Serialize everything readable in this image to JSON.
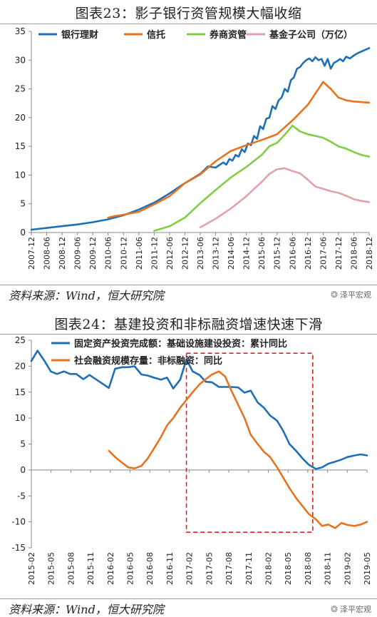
{
  "charts": [
    {
      "title": "图表23：影子银行资管规模大幅收缩",
      "source": "资料来源：Wind，恒大研究院",
      "watermark": "泽平宏观"
    },
    {
      "title": "图表24：基建投资和非标融资增速快速下滑",
      "source": "资料来源：Wind，恒大研究院",
      "watermark": "泽平宏观"
    }
  ],
  "chart_data": [
    {
      "type": "line",
      "title": "图表23：影子银行资管规模大幅收缩",
      "ylim": [
        0,
        35
      ],
      "yticks": [
        0,
        5,
        10,
        15,
        20,
        25,
        30,
        35
      ],
      "xticks": [
        "2007-12",
        "2008-06",
        "2008-12",
        "2009-06",
        "2009-12",
        "2010-06",
        "2010-12",
        "2011-06",
        "2011-12",
        "2012-06",
        "2012-12",
        "2013-06",
        "2013-12",
        "2014-06",
        "2014-12",
        "2015-06",
        "2015-12",
        "2016-06",
        "2016-12",
        "2017-06",
        "2017-12",
        "2018-06",
        "2018-12"
      ],
      "legend_position": "top",
      "legend_suffix": "（万亿）",
      "series": [
        {
          "name": "银行理财",
          "color": "#1f6fb4",
          "x": [
            0,
            2,
            4,
            6,
            8,
            10,
            12,
            14,
            16,
            18,
            20,
            22,
            23,
            24,
            25,
            25.4,
            25.8,
            26.2,
            26.6,
            27,
            27.4,
            27.8,
            28.2,
            28.6,
            29,
            29.4,
            29.8,
            30.2,
            30.6,
            31,
            31.4,
            31.8,
            32.2,
            32.6,
            33,
            33.4,
            33.8,
            34.2,
            34.6,
            35,
            35.4,
            35.8,
            36.2,
            36.6,
            37,
            37.4,
            37.8,
            38.2,
            38.6,
            39,
            39.4,
            39.8,
            40.2,
            40.6,
            41,
            41.5,
            42,
            42.5,
            43,
            43.5,
            44
          ],
          "y": [
            0.5,
            0.8,
            1.1,
            1.4,
            1.8,
            2.3,
            3.0,
            4.0,
            5.2,
            6.8,
            8.6,
            10.2,
            11.5,
            11.3,
            12.2,
            11.8,
            12.8,
            12.5,
            13.5,
            13.2,
            14.5,
            14.0,
            15.5,
            15.2,
            16.8,
            16.3,
            18.5,
            18.0,
            19.8,
            20.0,
            22.0,
            21.5,
            23.0,
            23.5,
            25.0,
            24.5,
            26.5,
            27.0,
            28.5,
            28.8,
            29.5,
            30.0,
            30.3,
            29.8,
            30.5,
            30.0,
            30.2,
            29.0,
            30.2,
            28.5,
            29.5,
            29.8,
            30.2,
            29.8,
            30.6,
            30.3,
            30.8,
            31.2,
            31.5,
            31.8,
            32.1
          ]
        },
        {
          "name": "信托",
          "color": "#e8731f",
          "x": [
            10,
            11,
            12,
            14,
            16,
            18,
            20,
            22,
            24,
            26,
            28,
            30,
            32,
            34,
            36,
            37,
            38,
            39,
            40,
            41,
            42,
            43,
            44
          ],
          "y": [
            2.6,
            2.9,
            3.1,
            3.6,
            4.9,
            6.3,
            8.6,
            10.1,
            12.4,
            14.2,
            15.2,
            16.1,
            17.1,
            19.5,
            22.2,
            24.2,
            26.2,
            25.0,
            23.5,
            23.0,
            22.8,
            22.7,
            22.6
          ]
        },
        {
          "name": "券商资管",
          "color": "#7fcf45",
          "x": [
            16,
            18,
            20,
            22,
            24,
            26,
            28,
            30,
            31,
            32,
            33,
            34,
            35,
            36,
            37,
            38,
            39,
            40,
            41,
            42,
            43,
            44
          ],
          "y": [
            0.3,
            1.1,
            2.6,
            5.1,
            7.4,
            9.6,
            11.4,
            13.5,
            15.0,
            15.6,
            17.0,
            18.6,
            17.6,
            17.1,
            16.8,
            16.5,
            15.8,
            15.0,
            14.6,
            14.0,
            13.5,
            13.2
          ]
        },
        {
          "name": "基金子公司",
          "color": "#e2a2a8",
          "x": [
            22,
            24,
            26,
            28,
            29,
            30,
            31,
            32,
            33,
            34,
            35,
            36,
            37,
            38,
            39,
            40,
            41,
            42,
            43,
            44
          ],
          "y": [
            0.9,
            2.4,
            4.2,
            6.3,
            7.6,
            8.8,
            10.2,
            11.0,
            11.2,
            10.7,
            10.3,
            9.2,
            8.0,
            7.6,
            7.2,
            6.9,
            6.4,
            5.8,
            5.5,
            5.3
          ]
        }
      ]
    },
    {
      "type": "line",
      "title": "图表24：基建投资和非标融资增速快速下滑",
      "ylim": [
        -15,
        25
      ],
      "yticks": [
        -15,
        -10,
        -5,
        0,
        5,
        10,
        15,
        20,
        25
      ],
      "xticks": [
        "2015-02",
        "2015-05",
        "2015-08",
        "2015-11",
        "2016-02",
        "2016-05",
        "2016-08",
        "2016-11",
        "2017-02",
        "2017-05",
        "2017-08",
        "2017-11",
        "2018-02",
        "2018-05",
        "2018-08",
        "2018-11",
        "2019-02",
        "2019-05"
      ],
      "legend_position": "top-left",
      "highlight_box": {
        "x_start": 2017.04,
        "x_end": 2018.67,
        "y_min": -12,
        "y_max": 22.5,
        "style": "dashed",
        "color": "#e02020"
      },
      "series": [
        {
          "name": "固定资产投资完成额：基础设施建设投资：累计同比",
          "color": "#1f6fb4",
          "x": [
            2015.04,
            2015.12,
            2015.21,
            2015.29,
            2015.37,
            2015.46,
            2015.54,
            2015.62,
            2015.71,
            2015.79,
            2015.87,
            2016.04,
            2016.12,
            2016.21,
            2016.29,
            2016.37,
            2016.46,
            2016.54,
            2016.62,
            2016.71,
            2016.79,
            2016.87,
            2016.96,
            2017.04,
            2017.12,
            2017.21,
            2017.29,
            2017.37,
            2017.46,
            2017.54,
            2017.62,
            2017.71,
            2017.79,
            2017.87,
            2017.96,
            2018.04,
            2018.12,
            2018.21,
            2018.29,
            2018.37,
            2018.46,
            2018.54,
            2018.62,
            2018.71,
            2018.79,
            2018.87,
            2018.96,
            2019.04,
            2019.12,
            2019.21,
            2019.29,
            2019.37
          ],
          "y": [
            21,
            23,
            21,
            19,
            18.5,
            19,
            18.5,
            18.5,
            17.5,
            18.3,
            17.5,
            15.8,
            19.5,
            19.8,
            19.8,
            20,
            18.4,
            18.2,
            17.8,
            17.4,
            17.8,
            15.7,
            17.4,
            21.3,
            19,
            18.3,
            17,
            16.9,
            16,
            16,
            16,
            15.9,
            14.9,
            15.3,
            13,
            12,
            10.5,
            9.5,
            7.5,
            5,
            3.6,
            2.2,
            1,
            0.2,
            0.5,
            1.2,
            1.6,
            2,
            2.5,
            2.8,
            3,
            2.8
          ]
        },
        {
          "name": "社会融资规模存量：非标融资：同比",
          "color": "#e8731f",
          "x": [
            2016.04,
            2016.12,
            2016.21,
            2016.29,
            2016.37,
            2016.46,
            2016.54,
            2016.62,
            2016.71,
            2016.79,
            2016.87,
            2016.96,
            2017.04,
            2017.12,
            2017.21,
            2017.29,
            2017.37,
            2017.46,
            2017.54,
            2017.62,
            2017.71,
            2017.79,
            2017.87,
            2017.96,
            2018.04,
            2018.12,
            2018.21,
            2018.29,
            2018.37,
            2018.46,
            2018.54,
            2018.62,
            2018.71,
            2018.79,
            2018.87,
            2018.96,
            2019.04,
            2019.12,
            2019.21,
            2019.29,
            2019.37
          ],
          "y": [
            3.7,
            2.5,
            1.4,
            0.5,
            0.3,
            0.8,
            2.2,
            4.1,
            6.3,
            8.6,
            10,
            12,
            13.5,
            15,
            16.5,
            17.5,
            18.4,
            19,
            18,
            15.3,
            12.5,
            10,
            6.8,
            5,
            3.5,
            2.5,
            0.5,
            -1.5,
            -3.5,
            -5.5,
            -7,
            -8.5,
            -9.5,
            -10.8,
            -10.5,
            -11.2,
            -10.2,
            -10.6,
            -10.8,
            -10.5,
            -10
          ]
        }
      ]
    }
  ]
}
